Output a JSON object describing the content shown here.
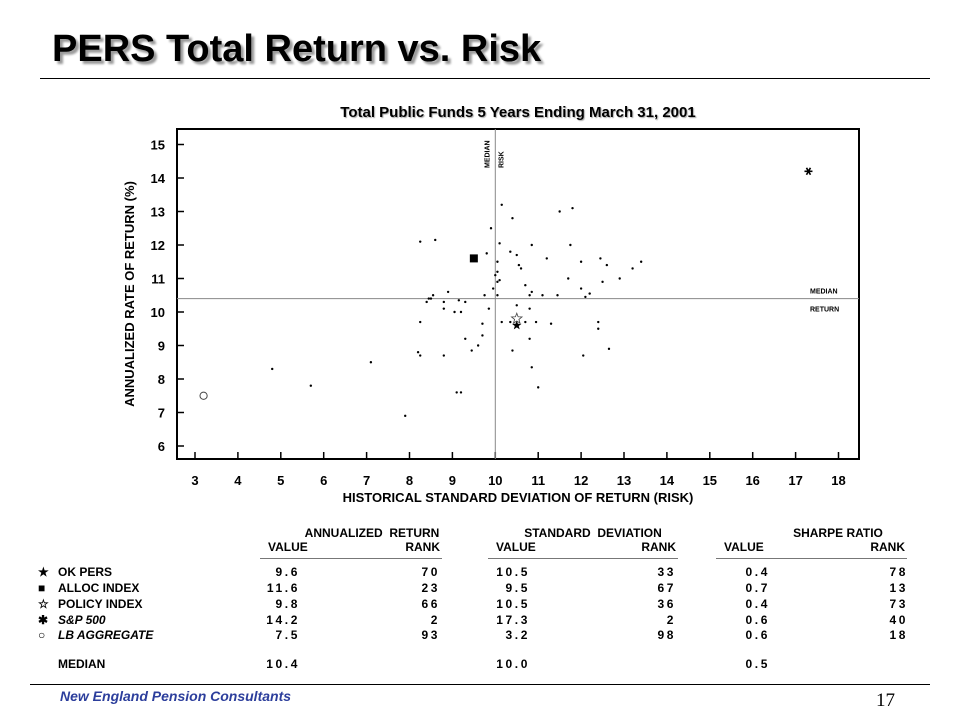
{
  "page": {
    "title": "PERS Total Return vs. Risk",
    "footer_text": "New England Pension Consultants",
    "page_number": "17"
  },
  "chart_data": {
    "type": "scatter",
    "title": "Total Public Funds 5 Years Ending March 31, 2001",
    "xlabel": "HISTORICAL STANDARD DEVIATION OF RETURN (RISK)",
    "ylabel": "ANNUALIZED RATE OF RETURN (%)",
    "xlim": [
      2.6,
      18.4
    ],
    "ylim": [
      5.5,
      15.5
    ],
    "x_ticks": [
      3,
      4,
      5,
      6,
      7,
      8,
      9,
      10,
      11,
      12,
      13,
      14,
      15,
      16,
      17,
      18
    ],
    "y_ticks": [
      6,
      7,
      8,
      9,
      10,
      11,
      12,
      13,
      14,
      15
    ],
    "grid": false,
    "median_risk": 10.0,
    "median_return": 10.4,
    "median_risk_label": [
      "MEDIAN",
      "RISK"
    ],
    "median_return_label": [
      "MEDIAN",
      "RETURN"
    ],
    "highlighted": [
      {
        "name": "OK PERS",
        "x": 10.5,
        "y": 9.6,
        "marker": "star-filled"
      },
      {
        "name": "ALLOC INDEX",
        "x": 9.5,
        "y": 11.6,
        "marker": "square"
      },
      {
        "name": "POLICY INDEX",
        "x": 10.5,
        "y": 9.8,
        "marker": "star-open"
      },
      {
        "name": "S&P 500",
        "x": 17.3,
        "y": 14.2,
        "marker": "asterisk"
      },
      {
        "name": "LB AGGREGATE",
        "x": 3.2,
        "y": 7.5,
        "marker": "circle-open"
      }
    ],
    "universe_points": [
      [
        4.8,
        8.3
      ],
      [
        5.7,
        7.8
      ],
      [
        7.1,
        8.5
      ],
      [
        7.9,
        6.9
      ],
      [
        8.2,
        8.8
      ],
      [
        8.25,
        8.7
      ],
      [
        8.25,
        9.7
      ],
      [
        8.25,
        12.1
      ],
      [
        8.4,
        10.3
      ],
      [
        8.45,
        10.4
      ],
      [
        8.5,
        10.4
      ],
      [
        8.55,
        10.5
      ],
      [
        8.6,
        12.15
      ],
      [
        8.8,
        8.7
      ],
      [
        8.8,
        10.1
      ],
      [
        8.8,
        10.3
      ],
      [
        8.9,
        10.6
      ],
      [
        9.05,
        10.0
      ],
      [
        9.1,
        7.6
      ],
      [
        9.15,
        10.35
      ],
      [
        9.2,
        10.0
      ],
      [
        9.2,
        7.6
      ],
      [
        9.3,
        10.3
      ],
      [
        9.3,
        9.2
      ],
      [
        9.45,
        8.85
      ],
      [
        9.6,
        9.0
      ],
      [
        9.7,
        9.3
      ],
      [
        9.7,
        9.65
      ],
      [
        9.75,
        10.5
      ],
      [
        9.8,
        11.75
      ],
      [
        9.85,
        10.1
      ],
      [
        9.9,
        12.5
      ],
      [
        9.95,
        10.7
      ],
      [
        10.0,
        11.1
      ],
      [
        10.05,
        11.2
      ],
      [
        10.05,
        11.5
      ],
      [
        10.05,
        10.9
      ],
      [
        10.05,
        10.5
      ],
      [
        10.1,
        10.95
      ],
      [
        10.1,
        12.05
      ],
      [
        10.15,
        13.2
      ],
      [
        10.15,
        9.7
      ],
      [
        10.35,
        11.8
      ],
      [
        10.35,
        9.7
      ],
      [
        10.4,
        12.8
      ],
      [
        10.4,
        8.85
      ],
      [
        10.5,
        10.2
      ],
      [
        10.5,
        11.7
      ],
      [
        10.55,
        11.4
      ],
      [
        10.6,
        11.3
      ],
      [
        10.7,
        9.7
      ],
      [
        10.7,
        10.8
      ],
      [
        10.8,
        9.2
      ],
      [
        10.8,
        10.1
      ],
      [
        10.8,
        10.5
      ],
      [
        10.85,
        8.35
      ],
      [
        10.85,
        10.6
      ],
      [
        10.85,
        12.0
      ],
      [
        10.95,
        9.7
      ],
      [
        11.0,
        7.75
      ],
      [
        11.1,
        10.5
      ],
      [
        11.2,
        11.6
      ],
      [
        11.3,
        9.65
      ],
      [
        11.45,
        10.5
      ],
      [
        11.5,
        13.0
      ],
      [
        11.7,
        11.0
      ],
      [
        11.75,
        12.0
      ],
      [
        11.8,
        13.1
      ],
      [
        12.0,
        11.5
      ],
      [
        12.0,
        10.7
      ],
      [
        12.05,
        8.7
      ],
      [
        12.4,
        9.5
      ],
      [
        12.4,
        9.7
      ],
      [
        12.45,
        11.6
      ],
      [
        12.5,
        10.9
      ],
      [
        12.6,
        11.4
      ],
      [
        12.65,
        8.9
      ],
      [
        12.9,
        11.0
      ],
      [
        13.2,
        11.3
      ],
      [
        13.4,
        11.5
      ],
      [
        12.2,
        10.55
      ],
      [
        12.1,
        10.45
      ]
    ]
  },
  "stats": {
    "groups": [
      {
        "title": "ANNUALIZED  RETURN",
        "value_label": "VALUE",
        "rank_label": "RANK"
      },
      {
        "title": "STANDARD  DEVIATION",
        "value_label": "VALUE",
        "rank_label": "RANK"
      },
      {
        "title": "SHARPE RATIO",
        "value_label": "VALUE",
        "rank_label": "RANK"
      }
    ],
    "rows": [
      {
        "label": "OK PERS",
        "marker": "★",
        "return_value": "9.6",
        "return_rank": "70",
        "sd_value": "10.5",
        "sd_rank": "33",
        "sharpe_value": "0.4",
        "sharpe_rank": "78"
      },
      {
        "label": "ALLOC INDEX",
        "marker": "■",
        "return_value": "11.6",
        "return_rank": "23",
        "sd_value": "9.5",
        "sd_rank": "67",
        "sharpe_value": "0.7",
        "sharpe_rank": "13"
      },
      {
        "label": "POLICY INDEX",
        "marker": "☆",
        "return_value": "9.8",
        "return_rank": "66",
        "sd_value": "10.5",
        "sd_rank": "36",
        "sharpe_value": "0.4",
        "sharpe_rank": "73"
      },
      {
        "label": "S&P 500",
        "marker": "✱",
        "return_value": "14.2",
        "return_rank": "2",
        "sd_value": "17.3",
        "sd_rank": "2",
        "sharpe_value": "0.6",
        "sharpe_rank": "40"
      },
      {
        "label": "LB AGGREGATE",
        "marker": "○",
        "return_value": "7.5",
        "return_rank": "93",
        "sd_value": "3.2",
        "sd_rank": "98",
        "sharpe_value": "0.6",
        "sharpe_rank": "18"
      }
    ],
    "median": {
      "label": "MEDIAN",
      "return_value": "10.4",
      "sd_value": "10.0",
      "sharpe_value": "0.5"
    }
  }
}
